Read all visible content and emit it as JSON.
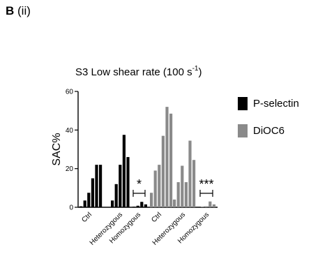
{
  "panel": {
    "letter": "B",
    "sub": "(ii)"
  },
  "chart_data": {
    "type": "bar",
    "title": "S3 Low shear rate (100 s",
    "title_superscript": "-1",
    "title_suffix": ")",
    "ylabel": "SAC%",
    "xlabel": "",
    "ylim": [
      0,
      60
    ],
    "yticks": [
      "0",
      "20",
      "40",
      "60"
    ],
    "grid": false,
    "legend_position": "right",
    "categories": [
      "Ctrl",
      "Heterozygous",
      "Homozygous",
      "Ctrl",
      "Heterozygous",
      "Homozygous"
    ],
    "series": [
      {
        "name": "P-selectin",
        "color": "#000000",
        "groups": [
          [
            0.5,
            3.5,
            7.5,
            15,
            22,
            22
          ],
          [
            3.5,
            12,
            22,
            37.5,
            26
          ],
          [
            0.3,
            0.8,
            2.8,
            1.5
          ]
        ]
      },
      {
        "name": "DiOC6",
        "color": "#8a8a8a",
        "groups": [
          [
            7.5,
            19,
            22,
            37,
            52,
            48.5
          ],
          [
            4,
            13,
            21.5,
            13,
            34.5,
            24.5
          ],
          [
            0.3,
            0.5,
            3,
            1.5
          ]
        ]
      }
    ],
    "annotations": [
      "*",
      "***"
    ]
  }
}
